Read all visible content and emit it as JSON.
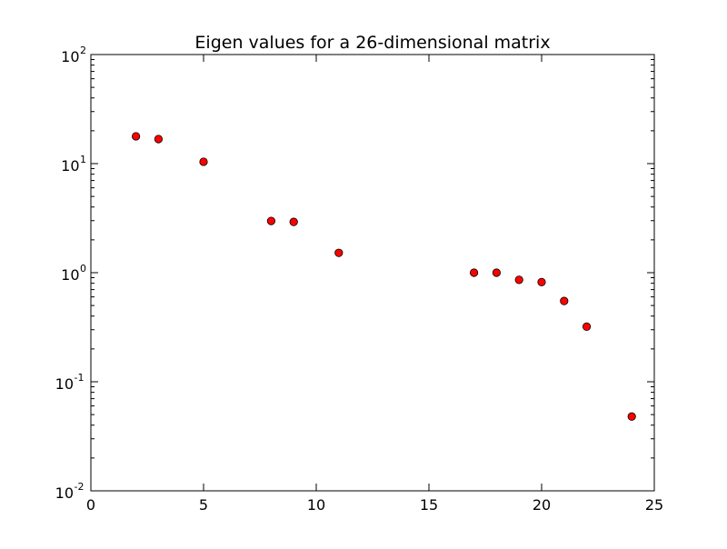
{
  "chart_data": {
    "type": "scatter",
    "title": "Eigen values for a 26-dimensional matrix",
    "xlabel": "",
    "ylabel": "",
    "x_scale": "linear",
    "y_scale": "log",
    "xlim": [
      0,
      25
    ],
    "ylim": [
      0.01,
      100
    ],
    "grid": false,
    "legend": "none",
    "marker": "circle",
    "marker_color": "#ff0000",
    "marker_edge_color": "#000000",
    "x_ticks": [
      {
        "value": 0,
        "label": "0"
      },
      {
        "value": 5,
        "label": "5"
      },
      {
        "value": 10,
        "label": "10"
      },
      {
        "value": 15,
        "label": "15"
      },
      {
        "value": 20,
        "label": "20"
      },
      {
        "value": 25,
        "label": "25"
      }
    ],
    "y_ticks": [
      {
        "value": 0.01,
        "base": "10",
        "exp": "-2"
      },
      {
        "value": 0.1,
        "base": "10",
        "exp": "-1"
      },
      {
        "value": 1,
        "base": "10",
        "exp": "0"
      },
      {
        "value": 10,
        "base": "10",
        "exp": "1"
      },
      {
        "value": 100,
        "base": "10",
        "exp": "2"
      }
    ],
    "points": [
      {
        "x": 2,
        "y": 17.8
      },
      {
        "x": 3,
        "y": 16.8
      },
      {
        "x": 5,
        "y": 10.4
      },
      {
        "x": 8,
        "y": 2.98
      },
      {
        "x": 9,
        "y": 2.92
      },
      {
        "x": 11,
        "y": 1.52
      },
      {
        "x": 17,
        "y": 1.0
      },
      {
        "x": 18,
        "y": 1.0
      },
      {
        "x": 19,
        "y": 0.86
      },
      {
        "x": 20,
        "y": 0.82
      },
      {
        "x": 21,
        "y": 0.55
      },
      {
        "x": 22,
        "y": 0.32
      },
      {
        "x": 24,
        "y": 0.048
      }
    ]
  }
}
